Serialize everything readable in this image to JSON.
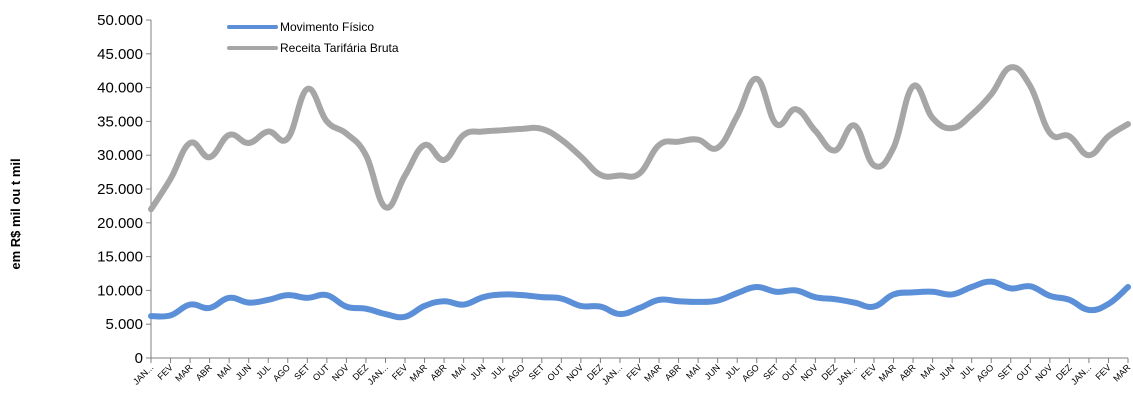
{
  "chart_data": {
    "type": "line",
    "title": "",
    "xlabel": "",
    "ylabel": "em R$ mil ou t mil",
    "ylim": [
      0,
      50000
    ],
    "yticks": [
      0,
      5000,
      10000,
      15000,
      20000,
      25000,
      30000,
      35000,
      40000,
      45000,
      50000
    ],
    "ytick_labels": [
      "0",
      "5.000",
      "10.000",
      "15.000",
      "20.000",
      "25.000",
      "30.000",
      "35.000",
      "40.000",
      "45.000",
      "50.000"
    ],
    "grid": false,
    "legend_position": "top-left",
    "categories": [
      "JAN...",
      "FEV",
      "MAR",
      "ABR",
      "MAI",
      "JUN",
      "JUL",
      "AGO",
      "SET",
      "OUT",
      "NOV",
      "DEZ",
      "JAN...",
      "FEV",
      "MAR",
      "ABR",
      "MAI",
      "JUN",
      "JUL",
      "AGO",
      "SET",
      "OUT",
      "NOV",
      "DEZ",
      "JAN...",
      "FEV",
      "MAR",
      "ABR",
      "MAI",
      "JUN",
      "JUL",
      "AGO",
      "SET",
      "OUT",
      "NOV",
      "DEZ",
      "JAN...",
      "FEV",
      "MAR",
      "ABR",
      "MAI",
      "JUN",
      "JUL",
      "AGO",
      "SET",
      "OUT",
      "NOV",
      "DEZ",
      "JAN...",
      "FEV",
      "MAR"
    ],
    "series": [
      {
        "name": "Movimento Físico",
        "color": "#5b8fd8",
        "values": [
          6200,
          6300,
          7900,
          7400,
          8900,
          8200,
          8600,
          9300,
          8900,
          9300,
          7600,
          7300,
          6500,
          6100,
          7700,
          8400,
          7900,
          9000,
          9400,
          9300,
          9000,
          8800,
          7700,
          7600,
          6500,
          7400,
          8600,
          8400,
          8300,
          8500,
          9600,
          10500,
          9800,
          10000,
          9000,
          8700,
          8200,
          7600,
          9400,
          9700,
          9800,
          9400,
          10500,
          11300,
          10300,
          10600,
          9200,
          8600,
          7100,
          8000,
          10500
        ]
      },
      {
        "name": "Receita Tarifária Bruta",
        "color": "#a6a6a6",
        "values": [
          22000,
          26500,
          31800,
          29700,
          33000,
          31800,
          33500,
          32500,
          39800,
          35000,
          33200,
          30000,
          22300,
          27000,
          31500,
          29300,
          33000,
          33500,
          33700,
          33900,
          33900,
          32300,
          29800,
          27100,
          27000,
          27300,
          31500,
          32000,
          32300,
          31100,
          35800,
          41300,
          34600,
          36800,
          33600,
          30700,
          34400,
          28500,
          31100,
          40200,
          35500,
          34000,
          36000,
          39000,
          43000,
          40200,
          33300,
          32800,
          30000,
          32800,
          34600
        ]
      }
    ]
  }
}
